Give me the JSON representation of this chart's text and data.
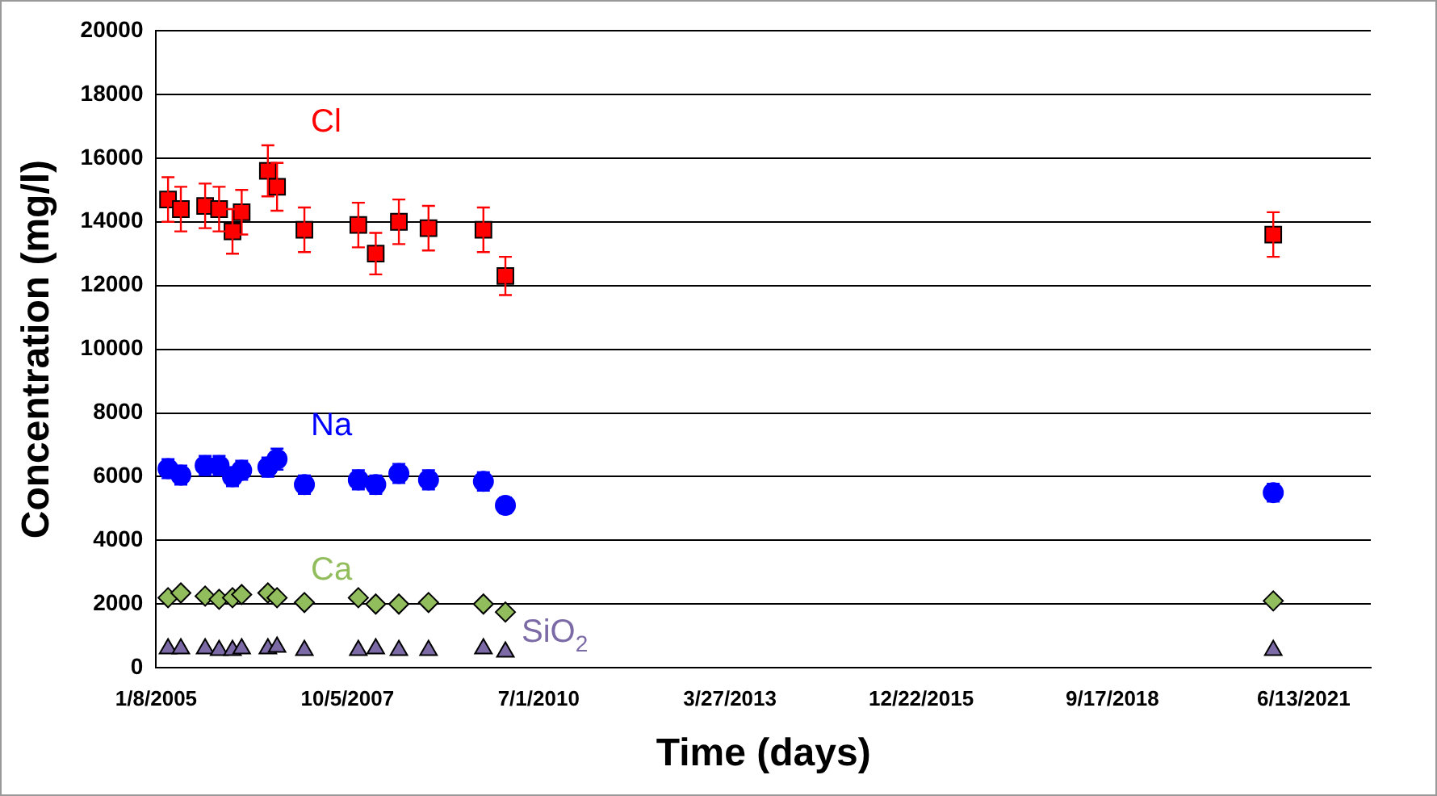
{
  "chart_data": {
    "type": "scatter",
    "xlabel": "Time (days)",
    "ylabel": "Concentration (mg/l)",
    "x": [
      "2005-03-11",
      "2005-05-17",
      "2005-09-21",
      "2005-12-03",
      "2006-02-11",
      "2006-03-31",
      "2006-08-15",
      "2006-10-02",
      "2007-02-22",
      "2007-12-01",
      "2008-03-01",
      "2008-06-30",
      "2008-12-02",
      "2009-09-15",
      "2010-01-08",
      "2021-01-05"
    ],
    "series": [
      {
        "name": "Cl",
        "color": "#ff0000",
        "marker": "square",
        "values": [
          14700,
          14400,
          14500,
          14400,
          13700,
          14300,
          15600,
          15100,
          13750,
          13900,
          13000,
          14000,
          13800,
          13750,
          12300,
          13600
        ],
        "errors": [
          700,
          700,
          700,
          700,
          700,
          700,
          800,
          750,
          700,
          700,
          650,
          700,
          700,
          700,
          600,
          700
        ]
      },
      {
        "name": "Na",
        "color": "#0000ff",
        "marker": "circle",
        "values": [
          6250,
          6050,
          6350,
          6350,
          6000,
          6200,
          6300,
          6550,
          5750,
          5900,
          5750,
          6100,
          5900,
          5850,
          5100,
          5500
        ],
        "errors": [
          300,
          300,
          300,
          300,
          300,
          300,
          300,
          330,
          290,
          300,
          290,
          300,
          300,
          290,
          250,
          280
        ]
      },
      {
        "name": "Ca",
        "color": "#92bd5c",
        "marker": "diamond",
        "values": [
          2200,
          2350,
          2250,
          2150,
          2200,
          2300,
          2350,
          2200,
          2050,
          2200,
          2000,
          2000,
          2050,
          2000,
          1750,
          2100
        ]
      },
      {
        "name": "SiO$_{2}$",
        "color": "#7b6aa6",
        "marker": "triangle",
        "values": [
          600,
          600,
          600,
          550,
          550,
          600,
          600,
          650,
          550,
          550,
          600,
          550,
          550,
          600,
          500,
          550
        ]
      }
    ],
    "xlim": [
      "2005-01-08",
      "2022-05-30"
    ],
    "xticks": [
      {
        "value": "2005-01-08",
        "label": "1/8/2005"
      },
      {
        "value": "2007-10-05",
        "label": "10/5/2007"
      },
      {
        "value": "2010-07-01",
        "label": "7/1/2010"
      },
      {
        "value": "2013-03-27",
        "label": "3/27/2013"
      },
      {
        "value": "2015-12-22",
        "label": "12/22/2015"
      },
      {
        "value": "2018-09-17",
        "label": "9/17/2018"
      },
      {
        "value": "2021-06-13",
        "label": "6/13/2021"
      }
    ],
    "ylim": [
      0,
      20000
    ],
    "yticks": [
      0,
      2000,
      4000,
      6000,
      8000,
      10000,
      12000,
      14000,
      16000,
      18000,
      20000
    ],
    "grid": "y",
    "legend": false
  }
}
